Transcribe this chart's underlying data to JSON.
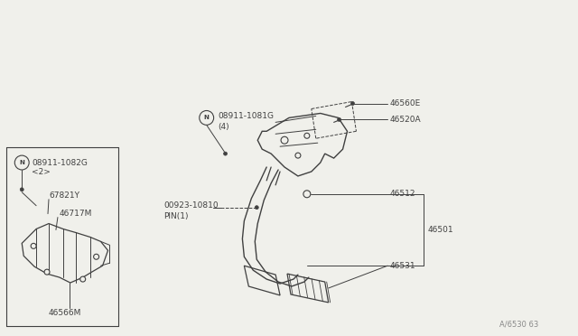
{
  "bg_color": "#ffffff",
  "line_color": "#404040",
  "text_color": "#404040",
  "watermark": "A/6530 63",
  "fig_bg": "#f0f0eb",
  "parts": {
    "46560E": "46560E",
    "46520A": "46520A",
    "46512": "46512",
    "46501": "46501",
    "46531": "46531",
    "08911_1081G": "08911-1081G",
    "08911_1081G_qty": "(4)",
    "08911_1082G": "08911-1082G",
    "08911_1082G_qty": "<2>",
    "67821Y": "67821Y",
    "46717M": "46717M",
    "46566M": "46566M",
    "pin_label": "00923-10810",
    "pin_qty": "PIN(1)"
  }
}
